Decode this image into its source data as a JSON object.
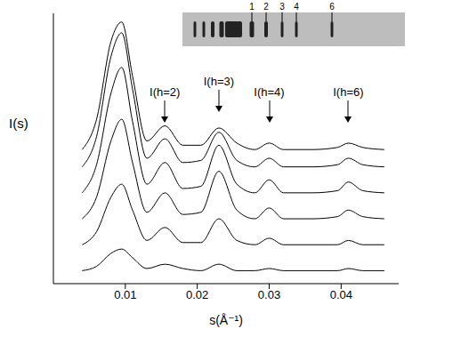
{
  "chart_data": {
    "type": "line",
    "xlabel": "s(Å⁻¹)",
    "ylabel": "I(s)",
    "color": "#000000",
    "xlim": [
      0,
      0.048
    ],
    "xticks": [
      0.01,
      0.02,
      0.03,
      0.04
    ],
    "ylim": [
      0,
      125
    ],
    "tick_labels": "x",
    "x": [
      0.004,
      0.006,
      0.008,
      0.0095,
      0.011,
      0.013,
      0.0155,
      0.018,
      0.0205,
      0.023,
      0.0255,
      0.028,
      0.03,
      0.032,
      0.036,
      0.0395,
      0.041,
      0.043,
      0.046
    ],
    "series": [
      {
        "values": [
          6,
          8,
          14,
          16,
          12,
          7,
          9,
          7,
          6,
          9,
          6,
          6,
          7,
          6,
          6,
          6,
          7,
          6,
          6
        ]
      },
      {
        "values": [
          18,
          24,
          40,
          46,
          34,
          20,
          26,
          19,
          19,
          30,
          20,
          18,
          21,
          18,
          18,
          18,
          20,
          18,
          18
        ]
      },
      {
        "values": [
          30,
          40,
          66,
          76,
          56,
          33,
          42,
          32,
          33,
          52,
          34,
          30,
          35,
          30,
          30,
          31,
          34,
          31,
          30
        ]
      },
      {
        "values": [
          42,
          55,
          88,
          100,
          75,
          46,
          56,
          44,
          45,
          64,
          46,
          42,
          48,
          42,
          42,
          43,
          47,
          43,
          42
        ]
      },
      {
        "values": [
          54,
          68,
          105,
          116,
          90,
          58,
          67,
          56,
          57,
          70,
          57,
          54,
          58,
          54,
          54,
          55,
          58,
          55,
          54
        ]
      },
      {
        "values": [
          62,
          76,
          112,
          121,
          96,
          66,
          73,
          64,
          64,
          72,
          65,
          62,
          65,
          62,
          62,
          63,
          65,
          63,
          62
        ]
      }
    ],
    "annotations": [
      {
        "text": "I(h=2)",
        "x": 0.0155
      },
      {
        "text": "I(h=3)",
        "x": 0.023
      },
      {
        "text": "I(h=4)",
        "x": 0.03
      },
      {
        "text": "I(h=6)",
        "x": 0.041
      }
    ],
    "inset": {
      "labels": [
        "1",
        "2",
        "3",
        "4",
        "6"
      ]
    }
  }
}
